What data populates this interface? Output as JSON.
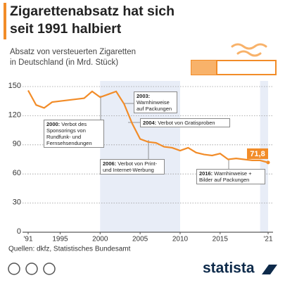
{
  "chart_data": {
    "type": "line",
    "title": [
      "Zigarettenabsatz hat sich",
      "seit 1991 halbiert"
    ],
    "subtitle": [
      "Absatz von versteuerten Zigaretten",
      "in Deutschland (in Mrd. Stück)"
    ],
    "x": [
      1991,
      1992,
      1993,
      1994,
      1995,
      1996,
      1997,
      1998,
      1999,
      2000,
      2001,
      2002,
      2003,
      2004,
      2005,
      2006,
      2007,
      2008,
      2009,
      2010,
      2011,
      2012,
      2013,
      2014,
      2015,
      2016,
      2017,
      2018,
      2019,
      2020,
      2021
    ],
    "series": [
      {
        "color": "#f28c28",
        "values": [
          146,
          131,
          128,
          134,
          135,
          136,
          137,
          138,
          145,
          139,
          142,
          145,
          132,
          112,
          96,
          93,
          92,
          88,
          87,
          84,
          87,
          82,
          80,
          79,
          81,
          75,
          76,
          75,
          74,
          74,
          71.8
        ],
        "value_labels": [
          null,
          null,
          null,
          null,
          null,
          null,
          null,
          null,
          null,
          null,
          null,
          null,
          null,
          null,
          null,
          null,
          null,
          null,
          null,
          null,
          null,
          null,
          null,
          null,
          null,
          null,
          null,
          null,
          null,
          null,
          "71,8"
        ]
      }
    ],
    "xlim": [
      1991,
      2021
    ],
    "xticks": [
      {
        "value": 1991,
        "label": "'91"
      },
      1995,
      2000,
      2005,
      2010,
      2015,
      {
        "value": 2021,
        "label": "'21"
      }
    ],
    "ylim": [
      0,
      150
    ],
    "yticks": [
      0,
      30,
      60,
      90,
      120,
      150
    ],
    "grid": true,
    "shaded_ranges": [
      [
        2000,
        2010
      ],
      [
        2020,
        2021
      ]
    ],
    "annotations": [
      {
        "lead": "2000:",
        "text": "Verbot des Sponsorings von Rundfunk- und Fernsehsendungen"
      },
      {
        "lead": "2003:",
        "text": "Warnhinweise auf Packungen"
      },
      {
        "lead": "2004:",
        "text": "Verbot von Gratisproben"
      },
      {
        "lead": "2006:",
        "text": "Verbot von Print- und Internet-Werbung"
      },
      {
        "lead": "2016:",
        "text": "Warnhinweise + Bilder auf Packungen"
      }
    ],
    "source": "Quellen: dkfz, Statistisches Bundesamt",
    "brand": "statista"
  }
}
